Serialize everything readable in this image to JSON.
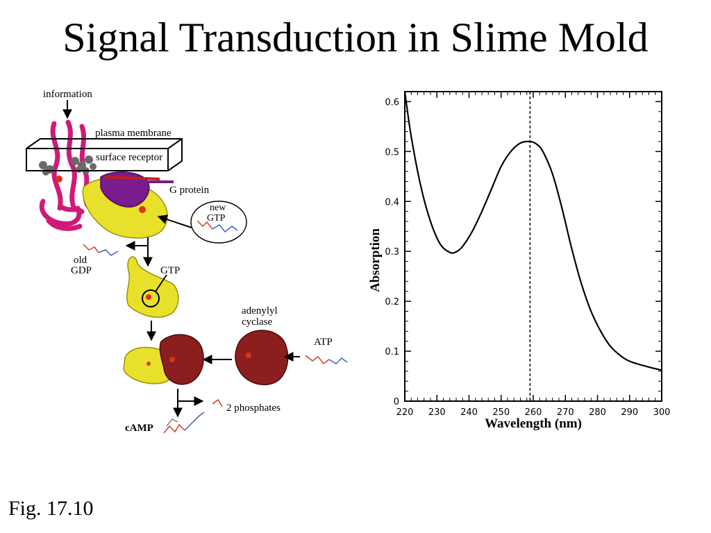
{
  "slide": {
    "title": "Signal Transduction in Slime Mold",
    "caption": "Fig. 17.10"
  },
  "diagram": {
    "information": "information",
    "plasma_membrane": "plasma membrane",
    "surface_receptor": "surface receptor",
    "g_protein": "G protein",
    "new": "new",
    "new_gtp": "GTP",
    "old": "old",
    "gdp": "GDP",
    "gtp": "GTP",
    "adenylyl": "adenylyl",
    "cyclase": "cyclase",
    "atp": "ATP",
    "phosphates": "2 phosphates",
    "camp": "cAMP",
    "colors": {
      "receptor": "#d01a78",
      "gprotein": "#e8e02a",
      "gprotein_beta": "#7a1b8f",
      "cyclase": "#8b1e1e",
      "membrane_balls": "#6a6a6a"
    }
  },
  "chart_data": {
    "type": "line",
    "title": "",
    "xlabel": "Wavelength (nm)",
    "ylabel": "Absorption",
    "xlim": [
      220,
      300
    ],
    "ylim": [
      0,
      0.62
    ],
    "xticks": [
      220,
      230,
      240,
      250,
      260,
      270,
      280,
      290,
      300
    ],
    "yticks": [
      0,
      0.1,
      0.2,
      0.3,
      0.4,
      0.5,
      0.6
    ],
    "xtick_labels": [
      "220",
      "230",
      "240",
      "250",
      "260",
      "270",
      "280",
      "290",
      "300"
    ],
    "ytick_labels": [
      "0",
      "0.1",
      "0.2",
      "0.3",
      "0.4",
      "0.5",
      "0.6"
    ],
    "grid": false,
    "reference_line_x": 259,
    "series": [
      {
        "x": [
          220,
          222,
          225,
          228,
          231,
          234,
          236,
          238,
          241,
          244,
          247,
          250,
          253,
          256,
          259,
          261,
          263,
          266,
          269,
          272,
          275,
          278,
          281,
          284,
          287,
          290,
          295,
          300
        ],
        "values": [
          0.62,
          0.53,
          0.43,
          0.36,
          0.315,
          0.298,
          0.299,
          0.31,
          0.34,
          0.38,
          0.425,
          0.47,
          0.5,
          0.517,
          0.52,
          0.515,
          0.5,
          0.455,
          0.385,
          0.305,
          0.235,
          0.18,
          0.14,
          0.11,
          0.092,
          0.08,
          0.07,
          0.062
        ]
      }
    ]
  }
}
